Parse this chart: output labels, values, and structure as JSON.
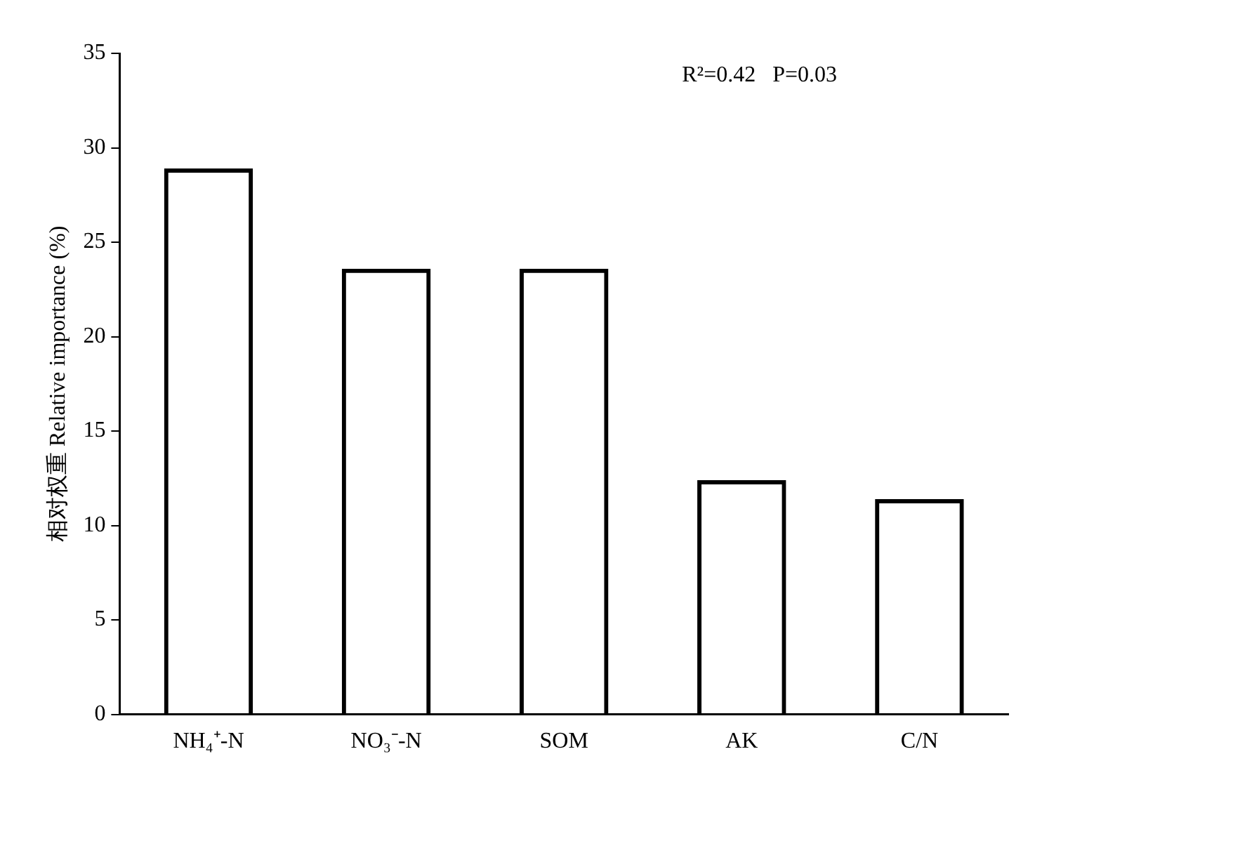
{
  "chart_data": {
    "type": "bar",
    "ylabel": "相对权重 Relative importance (%)",
    "categories": [
      "NH₄⁺-N",
      "NO₃⁻-N",
      "SOM",
      "AK",
      "C/N"
    ],
    "values": [
      28.9,
      23.6,
      23.6,
      12.4,
      11.4
    ],
    "color": "#000000",
    "ylim": [
      0,
      35
    ],
    "yticks": [
      0,
      5,
      10,
      15,
      20,
      25,
      30,
      35
    ],
    "grid": false,
    "annotations": [
      "R²=0.42   P=0.03"
    ]
  }
}
